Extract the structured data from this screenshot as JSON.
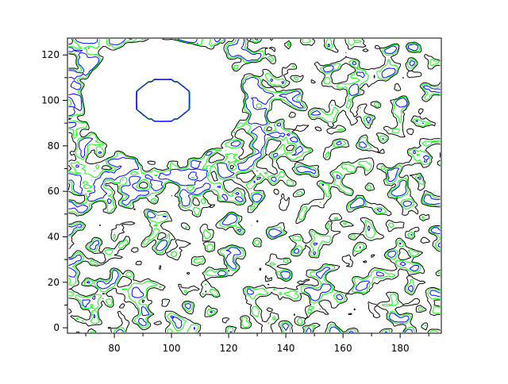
{
  "chart_data": {
    "type": "contour",
    "title": "",
    "xlabel": "",
    "ylabel": "",
    "xlim": [
      63.6,
      194.4
    ],
    "ylim": [
      -2.4,
      127.4
    ],
    "xticks": [
      80,
      100,
      120,
      140,
      160,
      180
    ],
    "yticks": [
      0,
      20,
      40,
      60,
      80,
      100,
      120
    ],
    "xtick_labels": [
      "80",
      "100",
      "120",
      "140",
      "160",
      "180"
    ],
    "ytick_labels": [
      "0",
      "20",
      "40",
      "60",
      "80",
      "100",
      "120"
    ],
    "minor_ticks": true,
    "grid": false,
    "levels": [
      {
        "value": 0.35,
        "color": "#000000"
      },
      {
        "value": 0.95,
        "color": "#00ff00"
      },
      {
        "value": 1.6,
        "color": "#0000ff"
      }
    ],
    "features": {
      "hole_center": [
        97,
        100
      ],
      "hole_radius": 26,
      "island_radius": 9
    }
  }
}
